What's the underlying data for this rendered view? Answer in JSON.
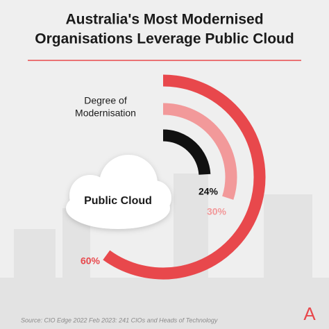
{
  "chart_data": {
    "type": "radial_bar",
    "title": [
      "Australia's Most Modernised",
      "Organisations Leverage Public Cloud"
    ],
    "legend_title": [
      "Degree of",
      "Modernisation"
    ],
    "center_label": "Public Cloud",
    "values": [
      24,
      30,
      60
    ],
    "value_labels": [
      "24%",
      "30%",
      "60%"
    ],
    "colors": [
      "#111111",
      "#f2999a",
      "#e8484c"
    ],
    "ylim": [
      0,
      100
    ],
    "source": "Source: CIO Edge 2022 Feb 2023: 241 CIOs and Heads of Technology",
    "logo": "A"
  }
}
